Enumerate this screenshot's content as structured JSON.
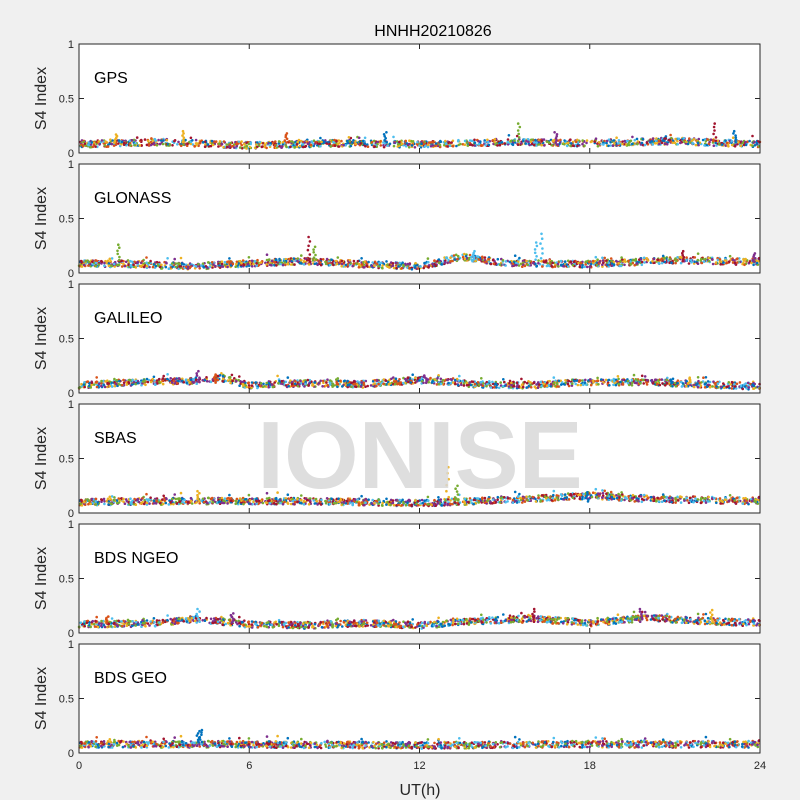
{
  "chart_data": {
    "type": "scatter",
    "title": "HNHH20210826",
    "xlabel": "UT(h)",
    "ylabel": "S4 Index",
    "xlim": [
      0,
      24
    ],
    "ylim": [
      0,
      1
    ],
    "xticks": [
      "0",
      "6",
      "12",
      "18",
      "24"
    ],
    "yticks": [
      "0",
      "0.5",
      "1"
    ],
    "watermark": "IONISE",
    "grid": false,
    "series_colors": [
      "#0072BD",
      "#D95319",
      "#EDB120",
      "#7E2F8E",
      "#77AC30",
      "#4DBEEE",
      "#A2142F"
    ],
    "panels": [
      {
        "name": "GPS",
        "baseline": 0.08,
        "drift": [
          [
            0,
            0.09
          ],
          [
            3,
            0.11
          ],
          [
            6,
            0.08
          ],
          [
            9,
            0.1
          ],
          [
            12,
            0.09
          ],
          [
            15,
            0.11
          ],
          [
            18,
            0.1
          ],
          [
            21,
            0.12
          ],
          [
            24,
            0.09
          ]
        ],
        "spikes": [
          [
            1.3,
            0.17
          ],
          [
            3.7,
            0.2
          ],
          [
            7.3,
            0.18
          ],
          [
            10.8,
            0.19
          ],
          [
            15.5,
            0.27
          ],
          [
            16.8,
            0.19
          ],
          [
            22.4,
            0.27
          ],
          [
            23.1,
            0.2
          ]
        ]
      },
      {
        "name": "GLONASS",
        "baseline": 0.09,
        "drift": [
          [
            0,
            0.1
          ],
          [
            2,
            0.09
          ],
          [
            4,
            0.07
          ],
          [
            6,
            0.1
          ],
          [
            8,
            0.12
          ],
          [
            10,
            0.09
          ],
          [
            12,
            0.07
          ],
          [
            13.5,
            0.16
          ],
          [
            15,
            0.1
          ],
          [
            18,
            0.09
          ],
          [
            21,
            0.13
          ],
          [
            24,
            0.11
          ]
        ],
        "spikes": [
          [
            1.4,
            0.26
          ],
          [
            8.1,
            0.33
          ],
          [
            8.3,
            0.24
          ],
          [
            13.9,
            0.2
          ],
          [
            16.3,
            0.36
          ],
          [
            16.1,
            0.28
          ],
          [
            21.3,
            0.2
          ],
          [
            23.8,
            0.18
          ]
        ]
      },
      {
        "name": "GALILEO",
        "baseline": 0.08,
        "drift": [
          [
            0,
            0.08
          ],
          [
            2,
            0.11
          ],
          [
            4,
            0.12
          ],
          [
            5,
            0.15
          ],
          [
            6,
            0.08
          ],
          [
            8,
            0.1
          ],
          [
            10,
            0.09
          ],
          [
            12,
            0.13
          ],
          [
            14,
            0.09
          ],
          [
            16,
            0.08
          ],
          [
            18,
            0.11
          ],
          [
            20,
            0.11
          ],
          [
            22,
            0.09
          ],
          [
            24,
            0.07
          ]
        ],
        "spikes": [
          [
            4.2,
            0.2
          ],
          [
            4.8,
            0.17
          ],
          [
            12.2,
            0.16
          ],
          [
            20.9,
            0.13
          ],
          [
            21.5,
            0.14
          ]
        ]
      },
      {
        "name": "SBAS",
        "baseline": 0.09,
        "drift": [
          [
            0,
            0.11
          ],
          [
            4,
            0.12
          ],
          [
            8,
            0.12
          ],
          [
            12,
            0.1
          ],
          [
            16,
            0.14
          ],
          [
            18,
            0.17
          ],
          [
            20,
            0.14
          ],
          [
            24,
            0.12
          ]
        ],
        "spikes": [
          [
            13.0,
            0.42
          ],
          [
            13.3,
            0.25
          ],
          [
            4.2,
            0.2
          ],
          [
            17.9,
            0.19
          ]
        ]
      },
      {
        "name": "BDS NGEO",
        "baseline": 0.08,
        "drift": [
          [
            0,
            0.09
          ],
          [
            3,
            0.1
          ],
          [
            4,
            0.14
          ],
          [
            6,
            0.09
          ],
          [
            8,
            0.08
          ],
          [
            10,
            0.1
          ],
          [
            12,
            0.08
          ],
          [
            14,
            0.12
          ],
          [
            16,
            0.14
          ],
          [
            18,
            0.1
          ],
          [
            20,
            0.15
          ],
          [
            22,
            0.12
          ],
          [
            24,
            0.1
          ]
        ],
        "spikes": [
          [
            4.2,
            0.22
          ],
          [
            5.4,
            0.18
          ],
          [
            16.0,
            0.22
          ],
          [
            19.8,
            0.22
          ],
          [
            22.3,
            0.21
          ],
          [
            1.0,
            0.15
          ]
        ]
      },
      {
        "name": "BDS GEO",
        "baseline": 0.08,
        "drift": [
          [
            0,
            0.09
          ],
          [
            6,
            0.09
          ],
          [
            12,
            0.08
          ],
          [
            18,
            0.09
          ],
          [
            24,
            0.09
          ]
        ],
        "spikes": [
          [
            4.2,
            0.2
          ],
          [
            4.3,
            0.21
          ]
        ]
      }
    ]
  }
}
